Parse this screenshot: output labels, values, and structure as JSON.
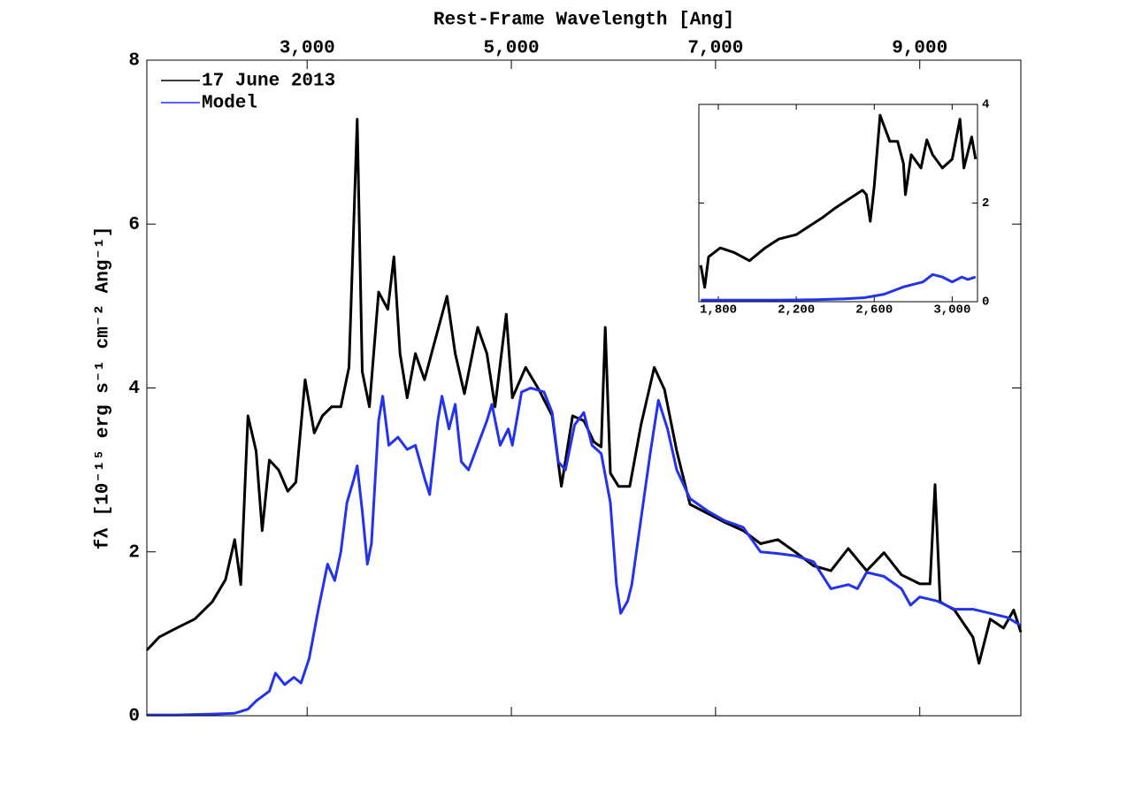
{
  "chart_data": [
    {
      "type": "line",
      "x_label": "Rest-Frame Wavelength [Ang]",
      "y_label": "fλ [10⁻¹⁵ erg s⁻¹ cm⁻² Ang⁻¹]",
      "xlim": [
        1430,
        9990
      ],
      "ylim": [
        0,
        8
      ],
      "xticks": [
        {
          "value": 3000,
          "label": "3,000"
        },
        {
          "value": 5000,
          "label": "5,000"
        },
        {
          "value": 7000,
          "label": "7,000"
        },
        {
          "value": 9000,
          "label": "9,000"
        }
      ],
      "yticks": [
        0,
        2,
        4,
        6,
        8
      ],
      "xaxis_position": "top",
      "yaxis_position": "left",
      "legend": "upper left",
      "series": [
        {
          "name": "17 June 2013",
          "color": "#000000",
          "x": [
            1430,
            1550,
            1720,
            1900,
            2070,
            2200,
            2290,
            2350,
            2420,
            2500,
            2560,
            2630,
            2720,
            2810,
            2890,
            2980,
            3070,
            3150,
            3240,
            3330,
            3410,
            3490,
            3540,
            3610,
            3700,
            3790,
            3850,
            3910,
            3980,
            4060,
            4150,
            4240,
            4370,
            4450,
            4540,
            4670,
            4760,
            4840,
            4950,
            5010,
            5140,
            5270,
            5400,
            5490,
            5600,
            5710,
            5810,
            5880,
            5920,
            5970,
            6050,
            6160,
            6270,
            6400,
            6500,
            6620,
            6750,
            6920,
            7090,
            7270,
            7440,
            7610,
            7790,
            7960,
            8130,
            8300,
            8480,
            8650,
            8820,
            9000,
            9100,
            9150,
            9200,
            9340,
            9520,
            9580,
            9690,
            9820,
            9920,
            9990
          ],
          "values": [
            0.8,
            0.96,
            1.07,
            1.18,
            1.39,
            1.66,
            2.15,
            1.6,
            3.66,
            3.23,
            2.26,
            3.12,
            3.0,
            2.74,
            2.85,
            4.1,
            3.45,
            3.66,
            3.77,
            3.77,
            4.25,
            7.28,
            4.2,
            3.77,
            5.17,
            4.96,
            5.6,
            4.42,
            3.88,
            4.42,
            4.1,
            4.52,
            5.12,
            4.42,
            3.93,
            4.74,
            4.42,
            3.77,
            4.9,
            3.88,
            4.25,
            3.98,
            3.66,
            2.8,
            3.66,
            3.6,
            3.34,
            3.28,
            4.74,
            2.96,
            2.8,
            2.8,
            3.55,
            4.25,
            3.98,
            3.23,
            2.58,
            2.47,
            2.36,
            2.26,
            2.1,
            2.15,
            1.99,
            1.83,
            1.77,
            2.04,
            1.77,
            1.99,
            1.72,
            1.61,
            1.61,
            2.82,
            1.39,
            1.29,
            0.96,
            0.64,
            1.18,
            1.07,
            1.29,
            1.02
          ]
        },
        {
          "name": "Model",
          "color": "#2233ee",
          "x": [
            1430,
            1720,
            2070,
            2290,
            2420,
            2500,
            2630,
            2690,
            2780,
            2870,
            2940,
            3020,
            3110,
            3200,
            3270,
            3330,
            3390,
            3460,
            3490,
            3540,
            3590,
            3630,
            3700,
            3740,
            3800,
            3890,
            3980,
            4060,
            4150,
            4200,
            4280,
            4320,
            4390,
            4450,
            4510,
            4580,
            4670,
            4760,
            4810,
            4890,
            4970,
            5010,
            5100,
            5190,
            5320,
            5400,
            5460,
            5530,
            5620,
            5710,
            5790,
            5880,
            5970,
            6030,
            6070,
            6140,
            6180,
            6270,
            6360,
            6440,
            6530,
            6620,
            6750,
            6920,
            7090,
            7270,
            7440,
            7610,
            7790,
            7960,
            8130,
            8300,
            8390,
            8480,
            8650,
            8820,
            8910,
            9000,
            9170,
            9340,
            9520,
            9690,
            9860,
            9990
          ],
          "values": [
            0.01,
            0.01,
            0.02,
            0.03,
            0.08,
            0.18,
            0.3,
            0.52,
            0.38,
            0.47,
            0.4,
            0.7,
            1.3,
            1.85,
            1.65,
            2.0,
            2.6,
            2.9,
            3.05,
            2.5,
            1.85,
            2.1,
            3.6,
            3.9,
            3.3,
            3.4,
            3.25,
            3.3,
            2.9,
            2.7,
            3.6,
            3.9,
            3.5,
            3.8,
            3.1,
            3.0,
            3.3,
            3.6,
            3.8,
            3.3,
            3.5,
            3.3,
            3.95,
            4.0,
            3.95,
            3.7,
            3.1,
            3.0,
            3.55,
            3.7,
            3.3,
            3.2,
            2.6,
            1.6,
            1.25,
            1.4,
            1.6,
            2.4,
            3.2,
            3.85,
            3.5,
            3.0,
            2.65,
            2.5,
            2.38,
            2.3,
            2.0,
            1.98,
            1.95,
            1.88,
            1.55,
            1.6,
            1.55,
            1.75,
            1.7,
            1.55,
            1.35,
            1.45,
            1.4,
            1.3,
            1.3,
            1.25,
            1.2,
            1.1
          ]
        }
      ]
    },
    {
      "type": "line",
      "xlim": [
        1700,
        3130
      ],
      "ylim": [
        0,
        4
      ],
      "xticks": [
        {
          "value": 1800,
          "label": "1,800"
        },
        {
          "value": 2200,
          "label": "2,200"
        },
        {
          "value": 2600,
          "label": "2,600"
        },
        {
          "value": 3000,
          "label": "3,000"
        }
      ],
      "yticks": [
        0,
        2,
        4
      ],
      "xaxis_position": "bottom",
      "yaxis_position": "right",
      "series": [
        {
          "color": "#000000",
          "x": [
            1710,
            1730,
            1750,
            1810,
            1880,
            1960,
            2040,
            2110,
            2200,
            2270,
            2340,
            2400,
            2470,
            2540,
            2560,
            2580,
            2600,
            2630,
            2680,
            2720,
            2750,
            2760,
            2790,
            2840,
            2870,
            2900,
            2950,
            3000,
            3040,
            3060,
            3100,
            3120
          ],
          "values": [
            0.74,
            0.29,
            0.91,
            1.09,
            1.0,
            0.83,
            1.09,
            1.27,
            1.36,
            1.54,
            1.72,
            1.9,
            2.08,
            2.26,
            2.17,
            1.63,
            2.35,
            3.78,
            3.25,
            3.25,
            2.8,
            2.17,
            2.98,
            2.71,
            3.28,
            2.98,
            2.71,
            2.89,
            3.7,
            2.71,
            3.34,
            2.89
          ]
        },
        {
          "color": "#2233ee",
          "x": [
            1710,
            1900,
            2100,
            2300,
            2450,
            2550,
            2650,
            2750,
            2850,
            2900,
            2950,
            3000,
            3050,
            3080,
            3120
          ],
          "values": [
            0.03,
            0.03,
            0.03,
            0.04,
            0.06,
            0.08,
            0.15,
            0.3,
            0.4,
            0.55,
            0.5,
            0.4,
            0.5,
            0.45,
            0.5
          ]
        }
      ]
    }
  ]
}
